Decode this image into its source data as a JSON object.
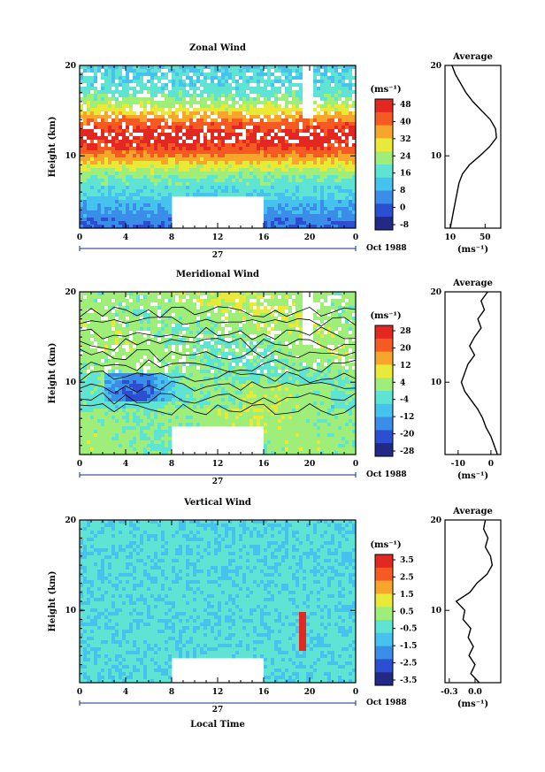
{
  "chart_data": [
    {
      "type": "heatmap",
      "title": "Zonal Wind",
      "ylabel": "Height (km)",
      "unit": "(ms⁻¹)",
      "xlim": [
        0,
        24
      ],
      "ylim": [
        2,
        20
      ],
      "x_ticks": [
        "0",
        "4",
        "8",
        "12",
        "16",
        "20",
        "0"
      ],
      "y_ticks": [
        "20",
        "10"
      ],
      "colorbar_ticks": [
        "48",
        "40",
        "32",
        "24",
        "16",
        "8",
        "0",
        "-8"
      ],
      "colorbar_range": [
        -8,
        48
      ],
      "profile_center_km": 12,
      "profile_width_km": 3.5,
      "profile_peak": 45,
      "profile_base": 14,
      "missing_block_x": [
        8,
        16
      ],
      "missing_block_y": [
        2,
        5.5
      ],
      "contours": false
    },
    {
      "type": "heatmap",
      "title": "Meridional Wind",
      "ylabel": "Height (km)",
      "unit": "(ms⁻¹)",
      "xlim": [
        0,
        24
      ],
      "ylim": [
        2,
        20
      ],
      "x_ticks": [
        "0",
        "4",
        "8",
        "12",
        "16",
        "20",
        "0"
      ],
      "y_ticks": [
        "20",
        "10"
      ],
      "colorbar_ticks": [
        "28",
        "20",
        "12",
        "4",
        "-4",
        "-12",
        "-20",
        "-28"
      ],
      "colorbar_range": [
        -28,
        28
      ],
      "missing_block_x": [
        8,
        16
      ],
      "missing_block_y": [
        2,
        5
      ],
      "contours": true
    },
    {
      "type": "heatmap",
      "title": "Vertical Wind",
      "ylabel": "Height (km)",
      "xlabel": "Local Time",
      "unit": "(ms⁻¹)",
      "xlim": [
        0,
        24
      ],
      "ylim": [
        2,
        20
      ],
      "x_ticks": [
        "0",
        "4",
        "8",
        "12",
        "16",
        "20",
        "0"
      ],
      "y_ticks": [
        "20",
        "10"
      ],
      "colorbar_ticks": [
        "3.5",
        "2.5",
        "1.5",
        "0.5",
        "-0.5",
        "-1.5",
        "-2.5",
        "-3.5"
      ],
      "colorbar_range": [
        -4,
        4
      ],
      "missing_block_x": [
        8,
        16
      ],
      "missing_block_y": [
        2,
        4.8
      ],
      "contours": false
    },
    {
      "type": "line",
      "title": "Average",
      "unit": "(ms⁻¹)",
      "xlim": [
        4,
        68
      ],
      "ylim": [
        2,
        20
      ],
      "x_ticks": [
        "10",
        "50"
      ],
      "y_ticks": [
        "20",
        "10"
      ],
      "y": [
        2,
        3,
        4,
        5,
        6,
        7,
        8,
        9,
        10,
        11,
        12,
        13,
        14,
        15,
        16,
        17,
        18,
        19,
        20
      ],
      "x": [
        10,
        12,
        14,
        16,
        18,
        20,
        24,
        32,
        44,
        55,
        63,
        62,
        56,
        46,
        36,
        28,
        22,
        16,
        12
      ]
    },
    {
      "type": "line",
      "title": "Average",
      "unit": "(ms⁻¹)",
      "xlim": [
        -14,
        3
      ],
      "ylim": [
        2,
        20
      ],
      "x_ticks": [
        "-10",
        "0"
      ],
      "y_ticks": [
        "20",
        "10"
      ],
      "y": [
        2,
        3,
        4,
        5,
        6,
        7,
        8,
        9,
        10,
        11,
        12,
        13,
        14,
        15,
        16,
        17,
        18,
        19,
        20
      ],
      "x": [
        2,
        1,
        0,
        -1.5,
        -2.5,
        -4,
        -6,
        -8,
        -9,
        -8,
        -7,
        -5,
        -6.5,
        -5,
        -3,
        -4,
        -2,
        -3,
        -1
      ]
    },
    {
      "type": "line",
      "title": "Average",
      "unit": "(ms⁻¹)",
      "xlim": [
        -0.35,
        0.3
      ],
      "ylim": [
        2,
        20
      ],
      "x_ticks": [
        "-0.3",
        "0.0"
      ],
      "y_ticks": [
        "20",
        "10"
      ],
      "y": [
        2,
        3,
        4,
        5,
        6,
        7,
        8,
        9,
        10,
        11,
        12,
        13,
        14,
        15,
        16,
        17,
        18,
        19,
        20
      ],
      "x": [
        0.05,
        -0.05,
        0.0,
        -0.07,
        -0.02,
        -0.08,
        -0.05,
        -0.14,
        -0.12,
        -0.22,
        -0.06,
        0.02,
        0.14,
        0.2,
        0.18,
        0.12,
        0.15,
        0.1,
        0.12
      ]
    }
  ],
  "date_label": "27",
  "month_label": "Oct 1988",
  "colors": {
    "scale": [
      "#232a86",
      "#2b4fd0",
      "#3a8ee8",
      "#45c3ee",
      "#5fe3d3",
      "#9fee7a",
      "#e8ea37",
      "#f7a62b",
      "#f45a22",
      "#e32721"
    ]
  }
}
